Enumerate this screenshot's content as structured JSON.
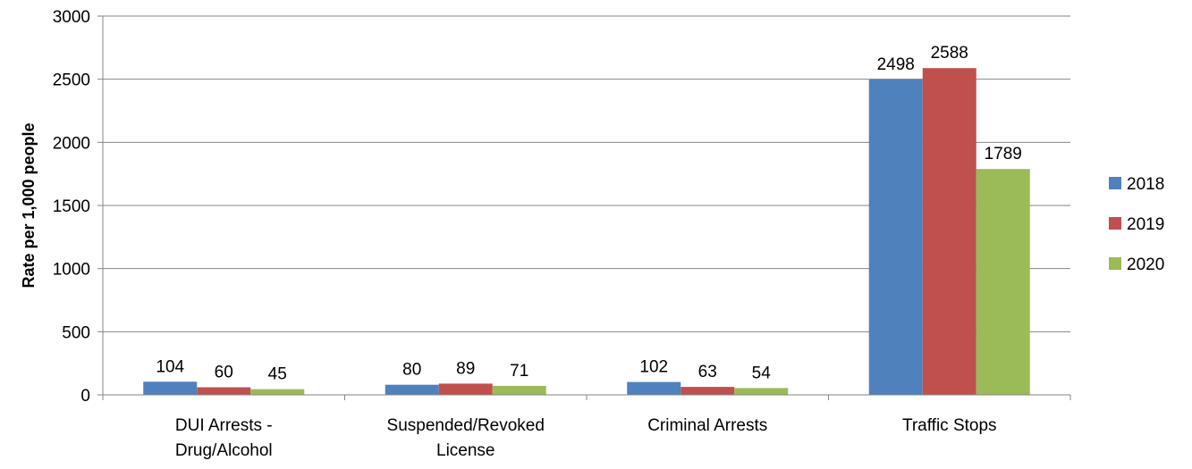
{
  "chart_data": {
    "type": "bar",
    "title": "",
    "xlabel": "",
    "ylabel": "Rate per 1,000 people",
    "ylim": [
      0,
      3000
    ],
    "yticks": [
      0,
      500,
      1000,
      1500,
      2000,
      2500,
      3000
    ],
    "grid": true,
    "legend_position": "right",
    "categories": [
      [
        "DUI Arrests -",
        "Drug/Alcohol"
      ],
      [
        "Suspended/Revoked",
        "License"
      ],
      [
        "Criminal Arrests"
      ],
      [
        "Traffic Stops"
      ]
    ],
    "series": [
      {
        "name": "2018",
        "color": "#4F81BD",
        "values": [
          104,
          80,
          102,
          2498
        ]
      },
      {
        "name": "2019",
        "color": "#C0504D",
        "values": [
          60,
          89,
          63,
          2588
        ]
      },
      {
        "name": "2020",
        "color": "#9BBB59",
        "values": [
          45,
          71,
          54,
          1789
        ]
      }
    ]
  }
}
